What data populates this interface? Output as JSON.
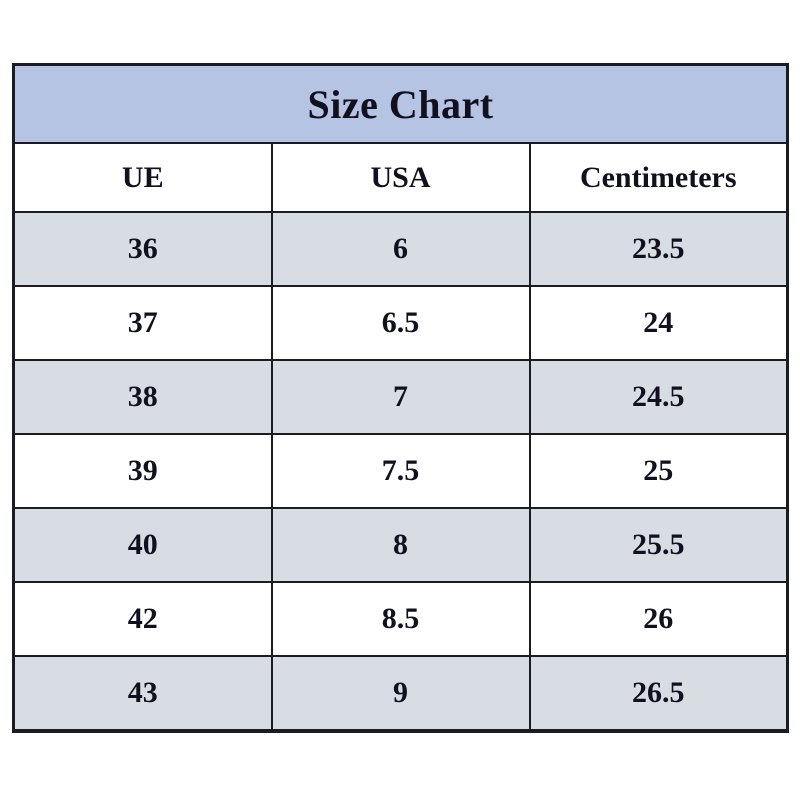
{
  "chart_data": {
    "type": "table",
    "title": "Size Chart",
    "columns": [
      "UE",
      "USA",
      "Centimeters"
    ],
    "rows": [
      [
        "36",
        "6",
        "23.5"
      ],
      [
        "37",
        "6.5",
        "24"
      ],
      [
        "38",
        "7",
        "24.5"
      ],
      [
        "39",
        "7.5",
        "25"
      ],
      [
        "40",
        "8",
        "25.5"
      ],
      [
        "42",
        "8.5",
        "26"
      ],
      [
        "43",
        "9",
        "26.5"
      ]
    ],
    "layout": {
      "striped": true,
      "stripe_rows": "odd rows (1st, 3rd, 5th, 7th) shaded"
    }
  },
  "colors": {
    "title_bg": "#b6c4e3",
    "stripe_row_bg": "#d8dde4",
    "plain_row_bg": "#ffffff",
    "border": "#1b1b22",
    "text": "#10101f",
    "page_bg": "#ffffff"
  }
}
